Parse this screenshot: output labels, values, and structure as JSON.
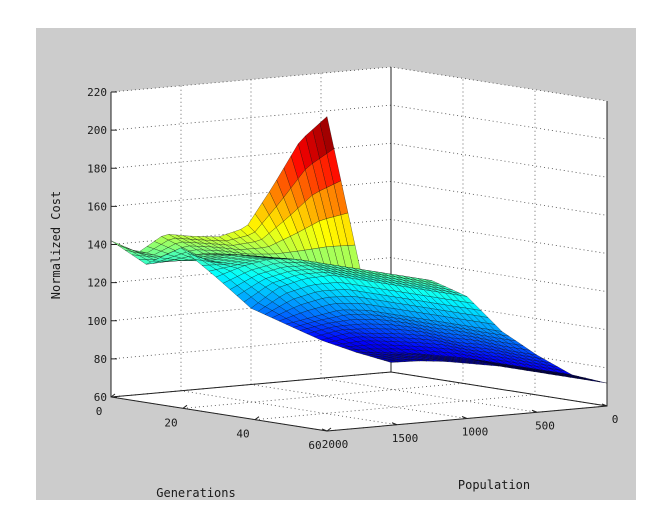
{
  "figure": {
    "background_color": "#cccccc",
    "plot_face_color": "#ffffff"
  },
  "chart_data": {
    "type": "surface",
    "colormap": "jet",
    "color_range": [
      60,
      220
    ],
    "grid": true,
    "title": "",
    "xlabel": "Generations",
    "ylabel": "Population",
    "zlabel": "Normalized Cost",
    "xlim": [
      0,
      60
    ],
    "ylim": [
      0,
      2000
    ],
    "zlim": [
      60,
      220
    ],
    "xticks": [
      "0",
      "20",
      "40",
      "60"
    ],
    "yticks": [
      "0",
      "500",
      "1000",
      "1500",
      "2000"
    ],
    "zticks": [
      "60",
      "80",
      "100",
      "120",
      "140",
      "160",
      "180",
      "200",
      "220"
    ],
    "generations": [
      0,
      7.5,
      15,
      22.5,
      30,
      37.5,
      45,
      52.5,
      60
    ],
    "population": [
      2000,
      1750,
      1500,
      1250,
      1000,
      750,
      500,
      250,
      0
    ],
    "cost": [
      [
        142,
        138,
        150,
        151,
        153,
        160,
        184,
        210,
        225
      ],
      [
        128,
        132,
        138,
        140,
        140,
        141,
        140,
        139,
        139
      ],
      [
        135,
        130,
        136,
        137,
        137,
        137,
        137,
        137,
        137
      ],
      [
        118,
        126,
        132,
        134,
        134,
        134,
        134,
        134,
        134
      ],
      [
        100,
        113,
        120,
        124,
        124,
        124,
        124,
        124,
        124
      ],
      [
        90,
        96,
        102,
        104,
        104,
        104,
        104,
        104,
        104
      ],
      [
        80,
        86,
        88,
        90,
        91,
        90,
        91,
        90,
        90
      ],
      [
        72,
        74,
        76,
        77,
        78,
        78,
        78,
        78,
        78
      ],
      [
        65,
        68,
        70,
        71,
        72,
        72,
        72,
        72,
        72
      ]
    ]
  }
}
